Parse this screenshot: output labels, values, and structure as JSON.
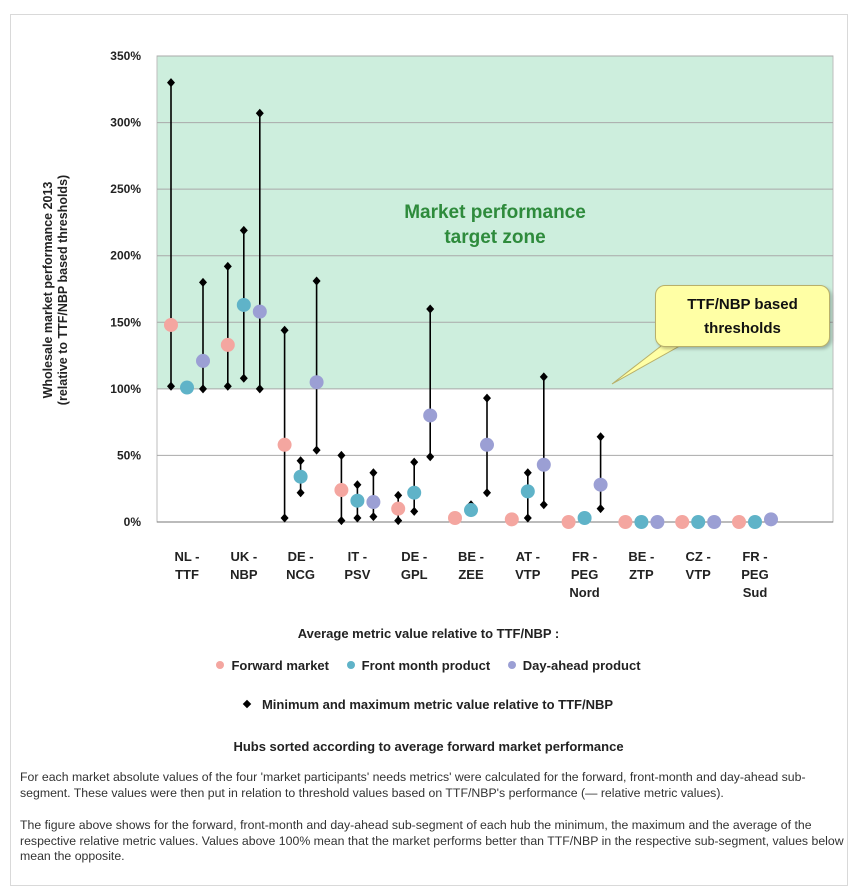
{
  "chart_data": {
    "type": "scatter",
    "ylabel": "Wholesale market performance 2013",
    "ylabel2": "(relative to TTF/NBP based thresholds)",
    "yticks": [
      "0%",
      "50%",
      "100%",
      "150%",
      "200%",
      "250%",
      "300%",
      "350%"
    ],
    "ylim": [
      0,
      350
    ],
    "grid": true,
    "categories": [
      [
        "NL -",
        "TTF"
      ],
      [
        "UK -",
        "NBP"
      ],
      [
        "DE -",
        "NCG"
      ],
      [
        "IT -",
        "PSV"
      ],
      [
        "DE -",
        "GPL"
      ],
      [
        "BE -",
        "ZEE"
      ],
      [
        "AT -",
        "VTP"
      ],
      [
        "FR -",
        "PEG",
        "Nord"
      ],
      [
        "BE -",
        "ZTP"
      ],
      [
        "CZ -",
        "VTP"
      ],
      [
        "FR -",
        "PEG",
        "Sud"
      ]
    ],
    "series": [
      {
        "name": "Forward market",
        "color": "#f4a6a0",
        "values": [
          148,
          133,
          58,
          24,
          10,
          3,
          2,
          0,
          0,
          0,
          0
        ],
        "min": [
          102,
          102,
          3,
          1,
          1,
          null,
          null,
          null,
          null,
          null,
          null
        ],
        "max": [
          330,
          192,
          144,
          50,
          20,
          null,
          null,
          null,
          null,
          null,
          null
        ]
      },
      {
        "name": "Front month product",
        "color": "#5fb3c8",
        "values": [
          101,
          163,
          34,
          16,
          22,
          9,
          23,
          3,
          0,
          0,
          0
        ],
        "min": [
          101,
          108,
          22,
          3,
          8,
          7,
          3,
          null,
          null,
          null,
          null
        ],
        "max": [
          101,
          219,
          46,
          28,
          45,
          13,
          37,
          null,
          null,
          null,
          null
        ]
      },
      {
        "name": "Day-ahead product",
        "color": "#9b9fd4",
        "values": [
          121,
          158,
          105,
          15,
          80,
          58,
          43,
          28,
          0,
          0,
          2
        ],
        "min": [
          100,
          100,
          54,
          4,
          49,
          22,
          13,
          10,
          null,
          null,
          null
        ],
        "max": [
          180,
          307,
          181,
          37,
          160,
          93,
          109,
          64,
          null,
          null,
          null
        ]
      }
    ],
    "target_zone_label_line1": "Market performance",
    "target_zone_label_line2": "target zone",
    "zone_color": "#cdeedd",
    "zone_label_color": "#2e8b3c"
  },
  "callout": {
    "line1": "TTF/NBP based",
    "line2": "thresholds"
  },
  "legend": {
    "title": "Average metric value relative to TTF/NBP :",
    "items": [
      {
        "label": "Forward market",
        "color": "#f4a6a0"
      },
      {
        "label": "Front month product",
        "color": "#5fb3c8"
      },
      {
        "label": "Day-ahead product",
        "color": "#9b9fd4"
      }
    ],
    "minmax_label": "Minimum and maximum metric value relative to TTF/NBP"
  },
  "sort_note": "Hubs sorted according to average forward market performance",
  "paragraphs": {
    "p1": "For each market absolute values of the four 'market participants' needs metrics' were calculated for the forward, front-month and day-ahead sub-segment. These values were then put in relation to threshold values based on TTF/NBP's performance (— relative metric values).",
    "p2": "The figure above shows for the forward, front-month and day-ahead sub-segment of each hub the minimum, the maximum and the average of the respective relative metric values. Values above 100% mean that the market performs better than TTF/NBP in the respective sub-segment, values below mean the opposite."
  }
}
